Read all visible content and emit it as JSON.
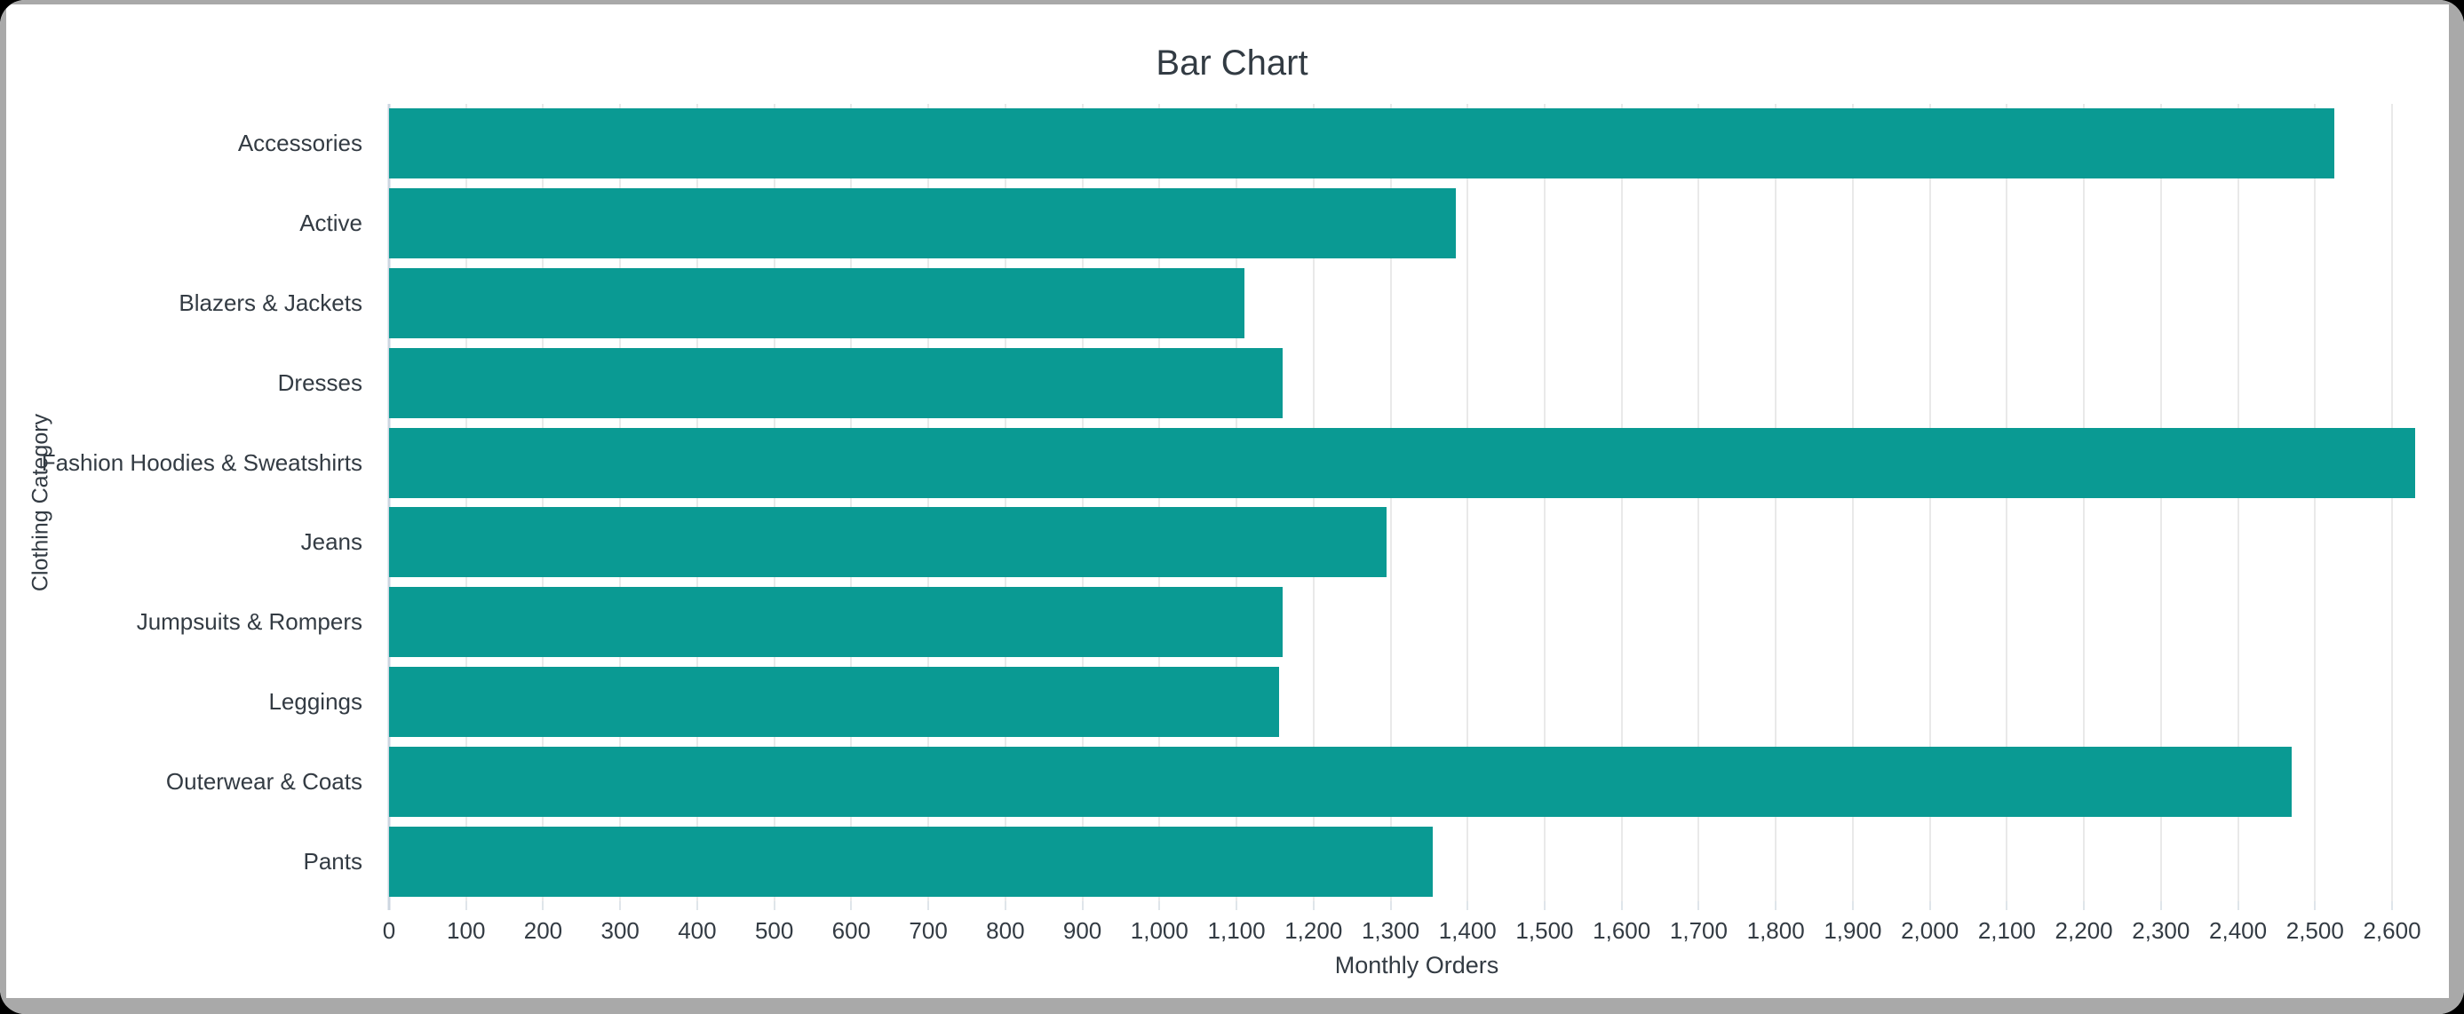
{
  "frame": {
    "background": "#ffffff",
    "border_color": "#a9a9a9"
  },
  "chart_data": {
    "type": "bar",
    "orientation": "horizontal",
    "title": "Bar Chart",
    "xlabel": "Monthly Orders",
    "ylabel": "Clothing Category",
    "categories": [
      "Accessories",
      "Active",
      "Blazers & Jackets",
      "Dresses",
      "Fashion Hoodies & Sweatshirts",
      "Jeans",
      "Jumpsuits & Rompers",
      "Leggings",
      "Outerwear & Coats",
      "Pants"
    ],
    "values": [
      2525,
      1385,
      1110,
      1160,
      2630,
      1295,
      1160,
      1155,
      2470,
      1355
    ],
    "bar_color": "#0a9a93",
    "text_color": "#333b43",
    "gridline_color": "#e9e9e9",
    "axisline_color": "#ccd6e0",
    "tick_color": "#dfe5ea",
    "xlim": [
      0,
      2668
    ],
    "xtick_interval": 100,
    "xtick_max": 2600,
    "grid": true,
    "legend": "none"
  }
}
